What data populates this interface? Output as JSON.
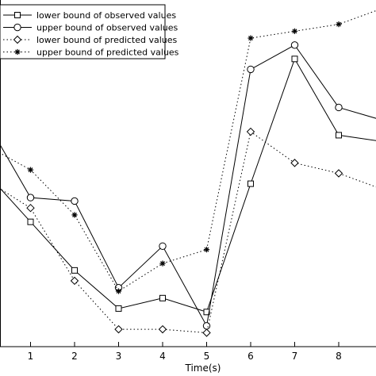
{
  "chart_data": {
    "type": "line",
    "title": "",
    "xlabel": "Time(s)",
    "ylabel": "",
    "x_ticks": [
      "1",
      "2",
      "3",
      "4",
      "5",
      "6",
      "7",
      "8"
    ],
    "xlim": [
      0,
      9.08
    ],
    "ylim": [
      0,
      1
    ],
    "grid": false,
    "legend_position": "top-left",
    "series": [
      {
        "name": "lower bound of observed values",
        "marker": "square",
        "style": "solid",
        "x": [
          0,
          1,
          2,
          3,
          4,
          5,
          6,
          7,
          8,
          9.08
        ],
        "y": [
          0.5,
          0.36,
          0.22,
          0.11,
          0.14,
          0.1,
          0.47,
          0.83,
          0.61,
          0.59
        ]
      },
      {
        "name": "upper bound of observed values",
        "marker": "circle",
        "style": "solid",
        "x": [
          0,
          1,
          2,
          3,
          4,
          5,
          6,
          7,
          8,
          9.08
        ],
        "y": [
          0.65,
          0.43,
          0.42,
          0.17,
          0.29,
          0.06,
          0.8,
          0.87,
          0.69,
          0.65
        ]
      },
      {
        "name": "lower bound of predicted values",
        "marker": "diamond",
        "style": "dotted",
        "x": [
          0,
          1,
          2,
          3,
          4,
          5,
          6,
          7,
          8,
          9.08
        ],
        "y": [
          0.48,
          0.4,
          0.19,
          0.05,
          0.05,
          0.04,
          0.62,
          0.53,
          0.5,
          0.45
        ]
      },
      {
        "name": "upper bound of predicted values",
        "marker": "star",
        "style": "dotted",
        "x": [
          0,
          1,
          2,
          3,
          4,
          5,
          6,
          7,
          8,
          9.08
        ],
        "y": [
          0.58,
          0.51,
          0.38,
          0.16,
          0.24,
          0.28,
          0.89,
          0.91,
          0.93,
          0.98
        ]
      }
    ]
  }
}
